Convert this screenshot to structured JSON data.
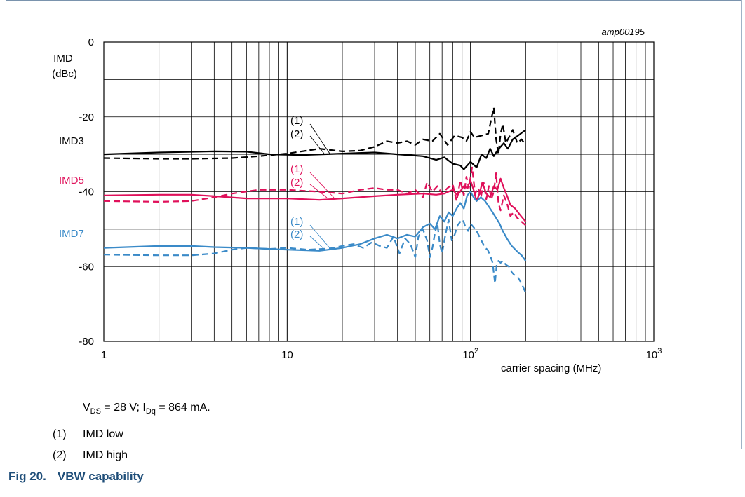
{
  "figure_id": "amp00195",
  "conditions": {
    "vds_prefix": "V",
    "vds_sub": "DS",
    "vds_rest": " = 28 V; I",
    "idq_sub": "Dq",
    "idq_rest": " = 864 mA."
  },
  "notes": [
    {
      "marker": "(1)",
      "text": "IMD low"
    },
    {
      "marker": "(2)",
      "text": "IMD high"
    }
  ],
  "caption": {
    "number": "Fig 20.",
    "title": "VBW capability"
  },
  "colors": {
    "IMD3": "#000000",
    "IMD5": "#e0105a",
    "IMD7": "#3a8ac8",
    "caption": "#1f4e79",
    "grid": "#000000"
  },
  "chart_data": {
    "type": "line",
    "title": "",
    "xlabel": "carrier spacing (MHz)",
    "ylabel": "IMD\n(dBc)",
    "x_scale": "log",
    "xlim": [
      1,
      1000
    ],
    "ylim": [
      -80,
      0
    ],
    "x_ticks": [
      {
        "value": 1,
        "label": "1"
      },
      {
        "value": 10,
        "label": "10"
      },
      {
        "value": 100,
        "label": "10",
        "exponent": "2"
      },
      {
        "value": 1000,
        "label": "10",
        "exponent": "3"
      }
    ],
    "y_ticks": [
      {
        "value": 0,
        "label": "0"
      },
      {
        "value": -20,
        "label": "-20"
      },
      {
        "value": -40,
        "label": "-40"
      },
      {
        "value": -60,
        "label": "-60"
      },
      {
        "value": -80,
        "label": "-80"
      }
    ],
    "grid": true,
    "series": [
      {
        "name": "IMD3",
        "group": "IMD3",
        "variant": "(1)",
        "style": "solid",
        "points": [
          [
            1,
            -30.0
          ],
          [
            2,
            -29.5
          ],
          [
            4,
            -29.2
          ],
          [
            6,
            -29.3
          ],
          [
            8,
            -30.0
          ],
          [
            12,
            -30.2
          ],
          [
            20,
            -29.8
          ],
          [
            30,
            -29.5
          ],
          [
            40,
            -30.0
          ],
          [
            55,
            -30.5
          ],
          [
            65,
            -31.5
          ],
          [
            72,
            -30.8
          ],
          [
            80,
            -32.5
          ],
          [
            88,
            -33.0
          ],
          [
            92,
            -34.0
          ],
          [
            96,
            -33.0
          ],
          [
            100,
            -32.0
          ],
          [
            108,
            -33.5
          ],
          [
            115,
            -30.0
          ],
          [
            122,
            -31.0
          ],
          [
            128,
            -28.5
          ],
          [
            134,
            -30.5
          ],
          [
            140,
            -29.0
          ],
          [
            146,
            -28.0
          ],
          [
            152,
            -27.0
          ],
          [
            160,
            -28.5
          ],
          [
            170,
            -26.0
          ],
          [
            182,
            -25.0
          ],
          [
            200,
            -23.5
          ]
        ]
      },
      {
        "name": "IMD3",
        "group": "IMD3",
        "variant": "(2)",
        "style": "dashed",
        "points": [
          [
            1,
            -31.0
          ],
          [
            2,
            -31.2
          ],
          [
            3,
            -31.2
          ],
          [
            5,
            -31.0
          ],
          [
            7,
            -30.5
          ],
          [
            10,
            -29.8
          ],
          [
            15,
            -28.5
          ],
          [
            20,
            -29.2
          ],
          [
            25,
            -29.0
          ],
          [
            30,
            -28.0
          ],
          [
            35,
            -26.5
          ],
          [
            40,
            -27.0
          ],
          [
            45,
            -26.5
          ],
          [
            50,
            -27.5
          ],
          [
            55,
            -26.0
          ],
          [
            62,
            -26.5
          ],
          [
            68,
            -24.5
          ],
          [
            75,
            -27.5
          ],
          [
            82,
            -25.0
          ],
          [
            90,
            -25.5
          ],
          [
            95,
            -26.5
          ],
          [
            100,
            -24.0
          ],
          [
            105,
            -25.5
          ],
          [
            115,
            -25.0
          ],
          [
            125,
            -24.5
          ],
          [
            130,
            -20.5
          ],
          [
            134,
            -17.5
          ],
          [
            138,
            -26.0
          ],
          [
            142,
            -30.0
          ],
          [
            146,
            -24.5
          ],
          [
            150,
            -22.0
          ],
          [
            156,
            -27.0
          ],
          [
            162,
            -25.5
          ],
          [
            170,
            -23.5
          ],
          [
            180,
            -27.0
          ],
          [
            190,
            -26.0
          ],
          [
            200,
            -27.5
          ]
        ]
      },
      {
        "name": "IMD5",
        "group": "IMD5",
        "variant": "(1)",
        "style": "solid",
        "points": [
          [
            1,
            -41.0
          ],
          [
            2,
            -40.8
          ],
          [
            3,
            -40.8
          ],
          [
            4,
            -41.2
          ],
          [
            6,
            -41.8
          ],
          [
            10,
            -41.8
          ],
          [
            15,
            -42.2
          ],
          [
            20,
            -41.8
          ],
          [
            30,
            -41.2
          ],
          [
            40,
            -40.8
          ],
          [
            55,
            -40.5
          ],
          [
            65,
            -40.8
          ],
          [
            72,
            -40.5
          ],
          [
            80,
            -39.5
          ],
          [
            85,
            -41.0
          ],
          [
            92,
            -38.5
          ],
          [
            96,
            -39.0
          ],
          [
            100,
            -37.0
          ],
          [
            104,
            -39.5
          ],
          [
            108,
            -42.5
          ],
          [
            112,
            -40.5
          ],
          [
            116,
            -37.5
          ],
          [
            122,
            -40.5
          ],
          [
            128,
            -41.5
          ],
          [
            134,
            -38.5
          ],
          [
            140,
            -39.5
          ],
          [
            146,
            -36.5
          ],
          [
            152,
            -39.0
          ],
          [
            158,
            -41.0
          ],
          [
            165,
            -43.5
          ],
          [
            175,
            -44.5
          ],
          [
            185,
            -46.0
          ],
          [
            200,
            -48.0
          ]
        ]
      },
      {
        "name": "IMD5",
        "group": "IMD5",
        "variant": "(2)",
        "style": "dashed",
        "points": [
          [
            1,
            -42.5
          ],
          [
            2,
            -42.7
          ],
          [
            3,
            -42.5
          ],
          [
            4,
            -41.5
          ],
          [
            5,
            -40.5
          ],
          [
            7,
            -39.5
          ],
          [
            10,
            -39.5
          ],
          [
            15,
            -40.0
          ],
          [
            20,
            -40.5
          ],
          [
            25,
            -39.5
          ],
          [
            30,
            -39.0
          ],
          [
            35,
            -39.5
          ],
          [
            40,
            -39.5
          ],
          [
            45,
            -40.5
          ],
          [
            50,
            -39.5
          ],
          [
            55,
            -41.5
          ],
          [
            58,
            -37.5
          ],
          [
            62,
            -40.0
          ],
          [
            66,
            -38.5
          ],
          [
            70,
            -40.5
          ],
          [
            75,
            -39.0
          ],
          [
            80,
            -38.0
          ],
          [
            84,
            -42.5
          ],
          [
            88,
            -37.0
          ],
          [
            92,
            -41.0
          ],
          [
            95,
            -36.0
          ],
          [
            98,
            -39.0
          ],
          [
            102,
            -33.5
          ],
          [
            106,
            -40.5
          ],
          [
            110,
            -39.0
          ],
          [
            114,
            -41.5
          ],
          [
            118,
            -37.5
          ],
          [
            122,
            -42.0
          ],
          [
            126,
            -38.5
          ],
          [
            130,
            -42.0
          ],
          [
            134,
            -40.0
          ],
          [
            138,
            -35.0
          ],
          [
            142,
            -43.0
          ],
          [
            146,
            -45.0
          ],
          [
            152,
            -41.0
          ],
          [
            158,
            -43.0
          ],
          [
            165,
            -46.5
          ],
          [
            172,
            -45.5
          ],
          [
            180,
            -47.0
          ],
          [
            190,
            -48.0
          ],
          [
            200,
            -49.0
          ]
        ]
      },
      {
        "name": "IMD7",
        "group": "IMD7",
        "variant": "(1)",
        "style": "solid",
        "points": [
          [
            1,
            -55.0
          ],
          [
            2,
            -54.5
          ],
          [
            3,
            -54.5
          ],
          [
            4,
            -54.8
          ],
          [
            6,
            -55.0
          ],
          [
            10,
            -55.5
          ],
          [
            15,
            -55.8
          ],
          [
            20,
            -55.0
          ],
          [
            25,
            -54.0
          ],
          [
            30,
            -52.5
          ],
          [
            35,
            -51.5
          ],
          [
            40,
            -52.5
          ],
          [
            45,
            -51.5
          ],
          [
            50,
            -52.0
          ],
          [
            55,
            -49.5
          ],
          [
            60,
            -48.5
          ],
          [
            64,
            -50.0
          ],
          [
            68,
            -46.5
          ],
          [
            72,
            -48.0
          ],
          [
            76,
            -45.5
          ],
          [
            80,
            -46.5
          ],
          [
            84,
            -44.5
          ],
          [
            88,
            -43.0
          ],
          [
            92,
            -44.5
          ],
          [
            96,
            -41.0
          ],
          [
            100,
            -40.0
          ],
          [
            104,
            -41.5
          ],
          [
            108,
            -42.5
          ],
          [
            114,
            -41.5
          ],
          [
            120,
            -42.5
          ],
          [
            126,
            -44.0
          ],
          [
            132,
            -45.5
          ],
          [
            138,
            -47.0
          ],
          [
            144,
            -48.5
          ],
          [
            150,
            -50.5
          ],
          [
            158,
            -52.5
          ],
          [
            168,
            -54.5
          ],
          [
            180,
            -56.0
          ],
          [
            190,
            -57.0
          ],
          [
            200,
            -58.5
          ]
        ]
      },
      {
        "name": "IMD7",
        "group": "IMD7",
        "variant": "(2)",
        "style": "dashed",
        "points": [
          [
            1,
            -56.8
          ],
          [
            2,
            -57.0
          ],
          [
            3,
            -57.0
          ],
          [
            4,
            -56.5
          ],
          [
            5,
            -55.5
          ],
          [
            6,
            -55.0
          ],
          [
            8,
            -55.3
          ],
          [
            10,
            -55.0
          ],
          [
            13,
            -55.5
          ],
          [
            17,
            -55.2
          ],
          [
            20,
            -54.5
          ],
          [
            23,
            -54.0
          ],
          [
            26,
            -55.0
          ],
          [
            29,
            -53.5
          ],
          [
            32,
            -54.5
          ],
          [
            35,
            -55.0
          ],
          [
            38,
            -52.0
          ],
          [
            41,
            -56.5
          ],
          [
            44,
            -52.5
          ],
          [
            47,
            -54.0
          ],
          [
            50,
            -57.5
          ],
          [
            52,
            -52.0
          ],
          [
            55,
            -50.0
          ],
          [
            58,
            -53.0
          ],
          [
            60,
            -57.5
          ],
          [
            62,
            -55.0
          ],
          [
            64,
            -51.0
          ],
          [
            66,
            -48.5
          ],
          [
            68,
            -54.0
          ],
          [
            70,
            -56.5
          ],
          [
            73,
            -51.5
          ],
          [
            76,
            -47.5
          ],
          [
            79,
            -53.0
          ],
          [
            82,
            -51.5
          ],
          [
            85,
            -49.0
          ],
          [
            88,
            -48.0
          ],
          [
            91,
            -47.5
          ],
          [
            94,
            -49.5
          ],
          [
            97,
            -50.5
          ],
          [
            100,
            -48.5
          ],
          [
            104,
            -49.5
          ],
          [
            108,
            -50.5
          ],
          [
            112,
            -52.0
          ],
          [
            116,
            -53.5
          ],
          [
            120,
            -55.0
          ],
          [
            124,
            -55.5
          ],
          [
            128,
            -57.0
          ],
          [
            132,
            -59.0
          ],
          [
            136,
            -64.5
          ],
          [
            139,
            -59.5
          ],
          [
            142,
            -58.5
          ],
          [
            146,
            -59.0
          ],
          [
            150,
            -58.5
          ],
          [
            156,
            -59.5
          ],
          [
            162,
            -60.0
          ],
          [
            168,
            -61.5
          ],
          [
            175,
            -62.5
          ],
          [
            182,
            -63.0
          ],
          [
            190,
            -64.5
          ],
          [
            200,
            -67.0
          ]
        ]
      }
    ],
    "annotations": [
      {
        "text": "IMD3",
        "group": "IMD3"
      },
      {
        "text": "IMD5",
        "group": "IMD5"
      },
      {
        "text": "IMD7",
        "group": "IMD7"
      },
      {
        "text": "(1)",
        "group": "IMD3"
      },
      {
        "text": "(2)",
        "group": "IMD3"
      },
      {
        "text": "(1)",
        "group": "IMD5"
      },
      {
        "text": "(2)",
        "group": "IMD5"
      },
      {
        "text": "(1)",
        "group": "IMD7"
      },
      {
        "text": "(2)",
        "group": "IMD7"
      }
    ]
  }
}
